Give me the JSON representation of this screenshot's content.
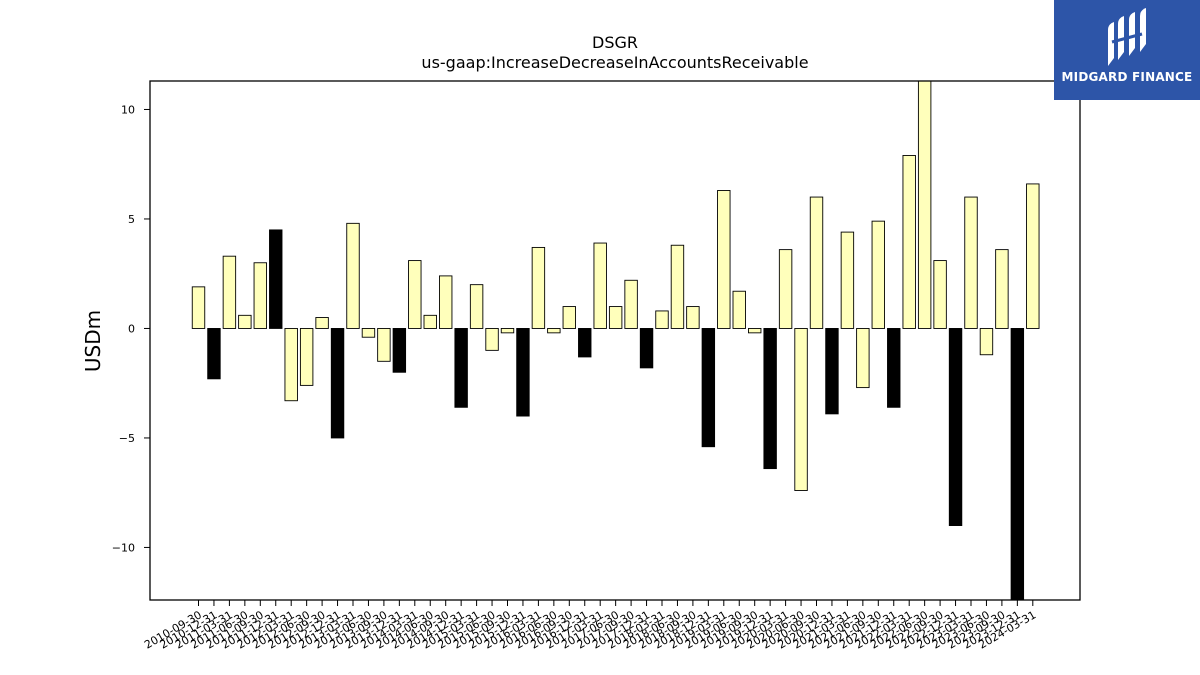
{
  "logo": {
    "text": "MIDGARD FINANCE"
  },
  "chart_data": {
    "type": "bar",
    "title": "DSGR",
    "subtitle": "us-gaap:IncreaseDecreaseInAccountsReceivable",
    "ylabel": "USDm",
    "ylim": [
      -12.4,
      11.3
    ],
    "yticks": [
      -10,
      -5,
      0,
      5,
      10
    ],
    "ytick_labels": [
      "−10",
      "−5",
      "0",
      "5",
      "10"
    ],
    "grid": false,
    "colors": {
      "highlight": "#ffffbb",
      "dark": "#000000",
      "edge": "#000000"
    },
    "categories": [
      "2010-09-30",
      "2010-12-31",
      "2011-03-31",
      "2011-06-30",
      "2011-09-30",
      "2011-12-31",
      "2012-03-31",
      "2012-06-30",
      "2012-09-30",
      "2012-12-31",
      "2013-03-31",
      "2013-06-30",
      "2013-09-30",
      "2013-12-31",
      "2014-03-31",
      "2014-06-30",
      "2014-09-30",
      "2014-12-31",
      "2015-03-31",
      "2015-06-30",
      "2015-09-30",
      "2015-12-31",
      "2016-03-31",
      "2016-06-30",
      "2016-09-30",
      "2016-12-31",
      "2017-03-31",
      "2017-06-30",
      "2017-09-30",
      "2017-12-31",
      "2018-03-31",
      "2018-06-30",
      "2018-09-30",
      "2018-12-31",
      "2019-03-31",
      "2019-06-30",
      "2019-09-30",
      "2019-12-31",
      "2020-03-31",
      "2020-06-30",
      "2020-09-30",
      "2020-12-31",
      "2021-03-31",
      "2021-06-30",
      "2021-09-30",
      "2021-12-31",
      "2022-03-31",
      "2022-06-30",
      "2022-09-30",
      "2022-12-31",
      "2023-03-31",
      "2023-06-30",
      "2023-09-30",
      "2023-12-31",
      "2024-03-31"
    ],
    "values": [
      1.9,
      -2.3,
      3.3,
      0.6,
      3.0,
      4.5,
      -3.3,
      -2.6,
      0.5,
      -5.0,
      4.8,
      -0.4,
      -1.5,
      -2.0,
      3.1,
      0.6,
      2.4,
      -3.6,
      2.0,
      -1.0,
      -0.2,
      -4.0,
      3.7,
      -0.2,
      1.0,
      -1.3,
      3.9,
      1.0,
      2.2,
      -1.8,
      0.8,
      3.8,
      1.0,
      -5.4,
      6.3,
      1.7,
      -0.2,
      -6.4,
      3.6,
      -7.4,
      6.0,
      -3.9,
      4.4,
      -2.7,
      4.9,
      -3.6,
      7.9,
      11.3,
      3.1,
      -9.0,
      6.0,
      -1.2,
      3.6,
      -12.4,
      6.6
    ],
    "bar_color_key": [
      "highlight",
      "dark",
      "highlight",
      "highlight",
      "highlight",
      "dark",
      "highlight",
      "highlight",
      "highlight",
      "dark",
      "highlight",
      "highlight",
      "highlight",
      "dark",
      "highlight",
      "highlight",
      "highlight",
      "dark",
      "highlight",
      "highlight",
      "highlight",
      "dark",
      "highlight",
      "highlight",
      "highlight",
      "dark",
      "highlight",
      "highlight",
      "highlight",
      "dark",
      "highlight",
      "highlight",
      "highlight",
      "dark",
      "highlight",
      "highlight",
      "highlight",
      "dark",
      "highlight",
      "highlight",
      "highlight",
      "dark",
      "highlight",
      "highlight",
      "highlight",
      "dark",
      "highlight",
      "highlight",
      "highlight",
      "dark",
      "highlight",
      "highlight",
      "highlight",
      "dark",
      "highlight"
    ]
  }
}
